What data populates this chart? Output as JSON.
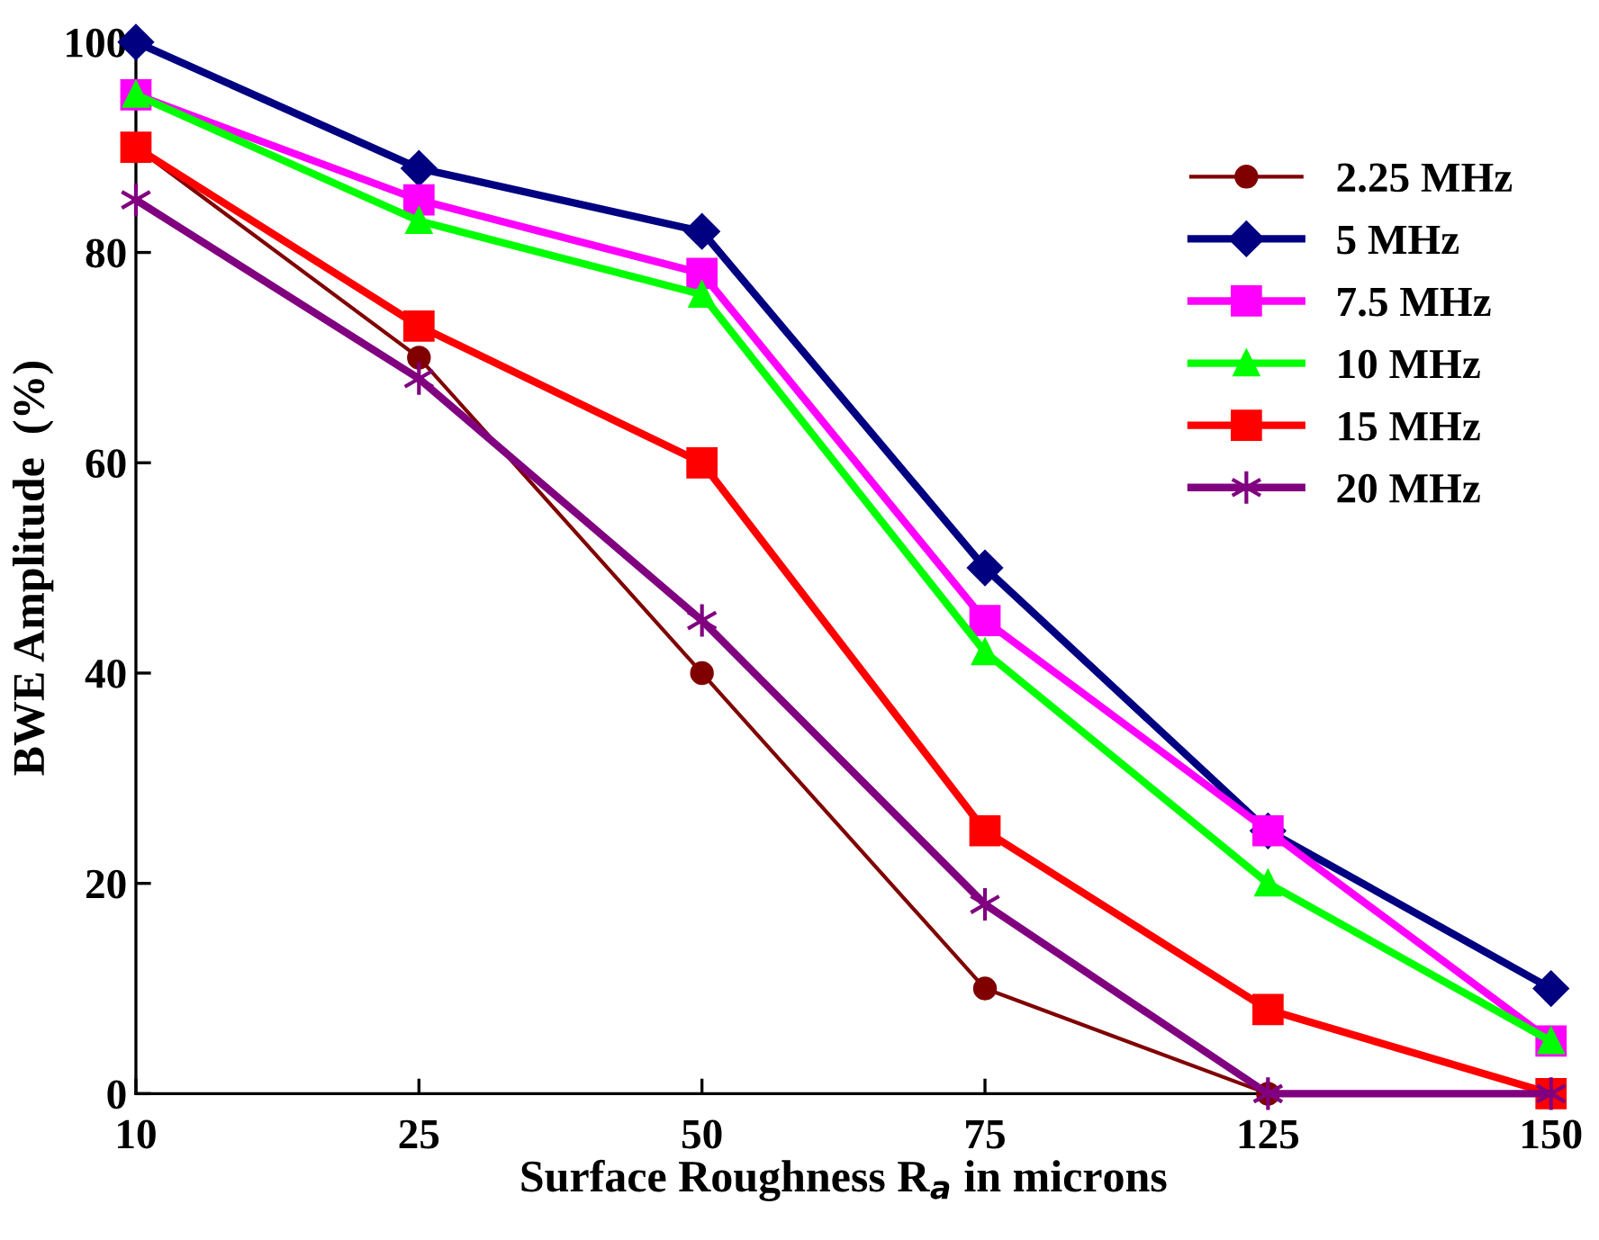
{
  "chart_data": {
    "type": "line",
    "xlabel": "Surface Roughness R$_{a}$ in microns",
    "ylabel": "BWE Amplitude  (%)",
    "categories": [
      "10",
      "25",
      "50",
      "75",
      "125",
      "150"
    ],
    "ylim": [
      0,
      100
    ],
    "yticks": [
      0,
      20,
      40,
      60,
      80,
      100
    ],
    "grid": false,
    "legend": "right",
    "series": [
      {
        "name": "2.25 MHz",
        "color": "#800000",
        "marker": "circle",
        "values": [
          90,
          70,
          40,
          10,
          0,
          0
        ]
      },
      {
        "name": "5 MHz",
        "color": "#000080",
        "marker": "diamond",
        "values": [
          100,
          88,
          82,
          50,
          25,
          10
        ]
      },
      {
        "name": "7.5 MHz",
        "color": "#ff00ff",
        "marker": "square",
        "values": [
          95,
          85,
          78,
          45,
          25,
          5
        ]
      },
      {
        "name": "10 MHz",
        "color": "#00ff00",
        "marker": "triangle",
        "values": [
          95,
          83,
          76,
          42,
          20,
          5
        ]
      },
      {
        "name": "15 MHz",
        "color": "#ff0000",
        "marker": "square",
        "values": [
          90,
          73,
          60,
          25,
          8,
          0
        ]
      },
      {
        "name": "20 MHz",
        "color": "#800080",
        "marker": "cross",
        "values": [
          85,
          68,
          45,
          18,
          0,
          0
        ]
      }
    ]
  }
}
